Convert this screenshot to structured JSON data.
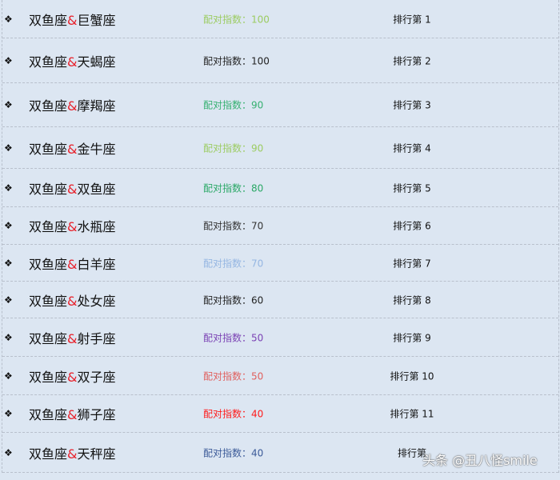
{
  "score_label": "配对指数：",
  "rank_label": "排行第",
  "base_sign": "双鱼座",
  "amp": "&",
  "rows": [
    {
      "partner": "巨蟹座",
      "score": "100",
      "rank": "1",
      "color": "#9ccc62"
    },
    {
      "partner": "天蝎座",
      "score": "100",
      "rank": "2",
      "color": "#222222"
    },
    {
      "partner": "摩羯座",
      "score": "90",
      "rank": "3",
      "color": "#35b070"
    },
    {
      "partner": "金牛座",
      "score": "90",
      "rank": "4",
      "color": "#9ccc62"
    },
    {
      "partner": "双鱼座",
      "score": "80",
      "rank": "5",
      "color": "#2aa866"
    },
    {
      "partner": "水瓶座",
      "score": "70",
      "rank": "6",
      "color": "#333333"
    },
    {
      "partner": "白羊座",
      "score": "70",
      "rank": "7",
      "color": "#95b6e2"
    },
    {
      "partner": "处女座",
      "score": "60",
      "rank": "8",
      "color": "#222222"
    },
    {
      "partner": "射手座",
      "score": "50",
      "rank": "9",
      "color": "#7b42b4"
    },
    {
      "partner": "双子座",
      "score": "50",
      "rank": "10",
      "color": "#e0605e"
    },
    {
      "partner": "狮子座",
      "score": "40",
      "rank": "11",
      "color": "#ff1a1a"
    },
    {
      "partner": "天秤座",
      "score": "40",
      "rank": "",
      "color": "#3b5a98"
    }
  ],
  "watermark": "头条 @丑八怪smile"
}
